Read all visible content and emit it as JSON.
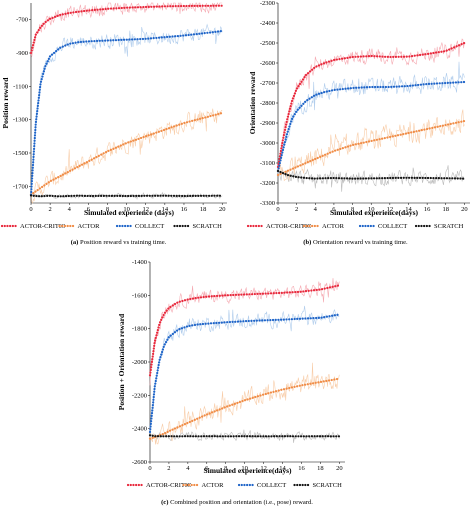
{
  "panels": [
    {
      "caption_tag": "(a)",
      "caption_text": "Position reward vs training time."
    },
    {
      "caption_tag": "(b)",
      "caption_text": "Orientation reward vs training time."
    },
    {
      "caption_tag": "(c)",
      "caption_text": "Combined position and orientation (i.e., pose) reward."
    }
  ],
  "colors": {
    "ACTOR-CRITIC": "#e8283c",
    "ACTOR": "#f08c46",
    "COLLECT": "#1e64c8",
    "SCRATCH": "#141414",
    "ACTOR-CRITIC_raw": "#f4a0a8",
    "ACTOR_raw": "#f7c8a0",
    "COLLECT_raw": "#a8c8ea",
    "SCRATCH_raw": "#b4b4b4"
  },
  "chart_data": [
    {
      "type": "line",
      "title": "",
      "xlabel": "Simulated experience (days)",
      "ylabel": "Position reward",
      "xlim": [
        0,
        20.5
      ],
      "ylim": [
        -1800,
        -600
      ],
      "xticks": [
        0,
        2,
        4,
        6,
        8,
        10,
        12,
        14,
        16,
        18,
        20
      ],
      "yticks": [
        -700,
        -900,
        -1100,
        -1300,
        -1500,
        -1700
      ],
      "grid": false,
      "legend": "bottom",
      "x": [
        0,
        0.5,
        1,
        1.5,
        2,
        3,
        4,
        5,
        6,
        8,
        10,
        12,
        14,
        16,
        18,
        20
      ],
      "series": [
        {
          "name": "ACTOR-CRITIC",
          "values": [
            -900,
            -790,
            -745,
            -715,
            -695,
            -672,
            -660,
            -652,
            -645,
            -635,
            -628,
            -624,
            -620,
            -618,
            -617,
            -616
          ]
        },
        {
          "name": "ACTOR",
          "values": [
            -1750,
            -1730,
            -1710,
            -1690,
            -1670,
            -1640,
            -1610,
            -1580,
            -1550,
            -1490,
            -1440,
            -1400,
            -1360,
            -1320,
            -1290,
            -1260
          ]
        },
        {
          "name": "COLLECT",
          "values": [
            -1750,
            -1320,
            -1080,
            -980,
            -920,
            -870,
            -845,
            -835,
            -830,
            -825,
            -820,
            -815,
            -805,
            -795,
            -782,
            -768
          ]
        },
        {
          "name": "SCRATCH",
          "values": [
            -1755,
            -1758,
            -1760,
            -1758,
            -1757,
            -1760,
            -1758,
            -1756,
            -1758,
            -1757,
            -1758,
            -1757,
            -1756,
            -1758,
            -1757,
            -1756
          ]
        }
      ]
    },
    {
      "type": "line",
      "title": "",
      "xlabel": "Simulated experience(days)",
      "ylabel": "Orientation reward",
      "xlim": [
        0,
        20.6
      ],
      "ylim": [
        -3300,
        -2300
      ],
      "xticks": [
        0,
        2,
        4,
        6,
        8,
        10,
        12,
        14,
        16,
        18,
        20
      ],
      "yticks": [
        -2300,
        -2400,
        -2500,
        -2600,
        -2700,
        -2800,
        -2900,
        -3000,
        -3100,
        -3200,
        -3300
      ],
      "grid": false,
      "legend": "bottom",
      "x": [
        0,
        0.5,
        1,
        1.5,
        2,
        3,
        4,
        5,
        6,
        8,
        10,
        12,
        14,
        16,
        18,
        20
      ],
      "series": [
        {
          "name": "ACTOR-CRITIC",
          "values": [
            -3120,
            -2990,
            -2880,
            -2790,
            -2730,
            -2660,
            -2620,
            -2600,
            -2585,
            -2570,
            -2565,
            -2570,
            -2568,
            -2555,
            -2540,
            -2500
          ]
        },
        {
          "name": "ACTOR",
          "values": [
            -3160,
            -3150,
            -3140,
            -3130,
            -3120,
            -3100,
            -3080,
            -3060,
            -3040,
            -3010,
            -2990,
            -2970,
            -2950,
            -2930,
            -2910,
            -2890
          ]
        },
        {
          "name": "COLLECT",
          "values": [
            -3140,
            -3040,
            -2950,
            -2880,
            -2840,
            -2790,
            -2760,
            -2745,
            -2735,
            -2725,
            -2720,
            -2720,
            -2715,
            -2705,
            -2700,
            -2695
          ]
        },
        {
          "name": "SCRATCH",
          "values": [
            -3140,
            -3150,
            -3160,
            -3165,
            -3170,
            -3175,
            -3178,
            -3176,
            -3175,
            -3178,
            -3177,
            -3175,
            -3174,
            -3175,
            -3176,
            -3178
          ]
        }
      ]
    },
    {
      "type": "line",
      "title": "",
      "xlabel": "Simulated experience(days)",
      "ylabel": "Position + Orientation reward",
      "xlim": [
        0,
        20.6
      ],
      "ylim": [
        -2600,
        -1400
      ],
      "xticks": [
        0,
        2,
        4,
        6,
        8,
        10,
        12,
        14,
        16,
        18,
        20
      ],
      "yticks": [
        -1400,
        -1600,
        -1800,
        -2000,
        -2200,
        -2400,
        -2600
      ],
      "grid": false,
      "legend": "bottom",
      "x": [
        0,
        0.5,
        1,
        1.5,
        2,
        3,
        4,
        5,
        6,
        8,
        10,
        12,
        14,
        16,
        18,
        20
      ],
      "series": [
        {
          "name": "ACTOR-CRITIC",
          "values": [
            -2080,
            -1880,
            -1770,
            -1710,
            -1675,
            -1640,
            -1625,
            -1615,
            -1608,
            -1600,
            -1595,
            -1590,
            -1585,
            -1578,
            -1565,
            -1540
          ]
        },
        {
          "name": "ACTOR",
          "values": [
            -2460,
            -2450,
            -2440,
            -2430,
            -2415,
            -2390,
            -2365,
            -2340,
            -2315,
            -2270,
            -2230,
            -2195,
            -2165,
            -2140,
            -2120,
            -2100
          ]
        },
        {
          "name": "COLLECT",
          "values": [
            -2420,
            -2150,
            -1990,
            -1900,
            -1850,
            -1805,
            -1785,
            -1775,
            -1770,
            -1762,
            -1755,
            -1750,
            -1746,
            -1740,
            -1735,
            -1715
          ]
        },
        {
          "name": "SCRATCH",
          "values": [
            -2440,
            -2445,
            -2445,
            -2446,
            -2445,
            -2446,
            -2445,
            -2446,
            -2445,
            -2446,
            -2445,
            -2446,
            -2445,
            -2446,
            -2445,
            -2446
          ]
        }
      ]
    }
  ]
}
